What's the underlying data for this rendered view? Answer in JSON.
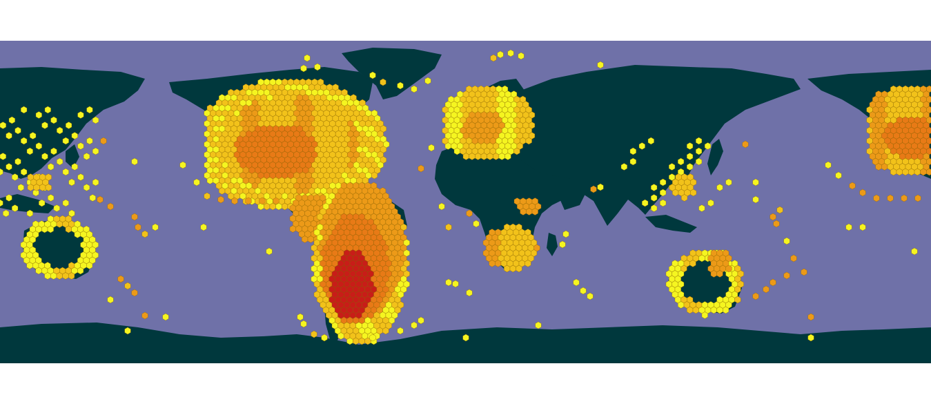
{
  "map": {
    "ocean_color": "#6f71a8",
    "land_color": "#00383d",
    "repeats_longitude": true,
    "density_palette": [
      "#f5f520",
      "#f2c21a",
      "#ec9a18",
      "#e87a16",
      "#c81d18"
    ],
    "bin_shape": "hexagon"
  }
}
